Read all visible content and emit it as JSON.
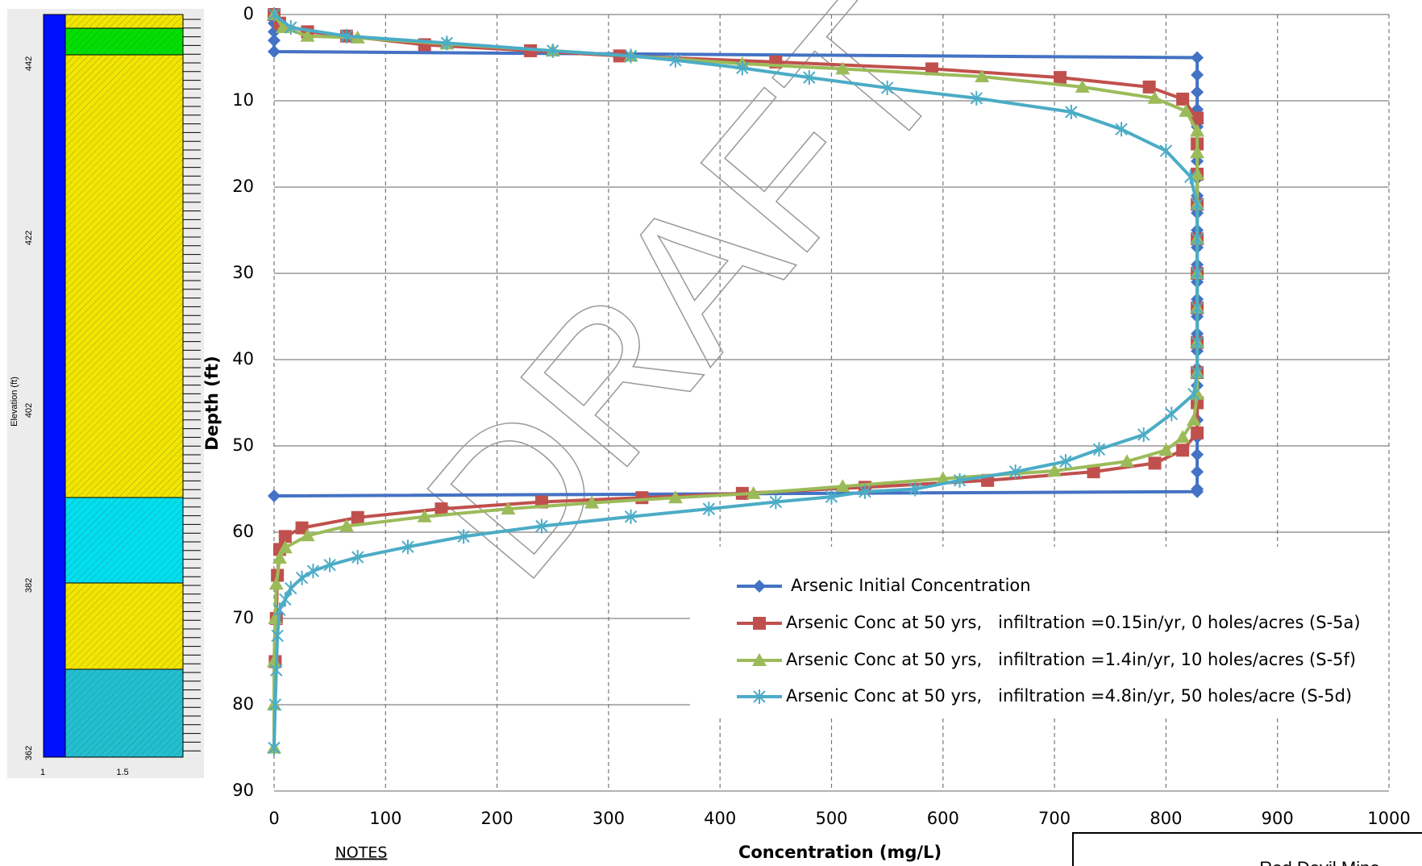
{
  "column": {
    "y_axis_label": "Elevation (ft)",
    "yticks": [
      442,
      422,
      402,
      382,
      362
    ],
    "xticks": [
      1,
      1.5
    ]
  },
  "chart_data": {
    "type": "scatter",
    "xlabel": "Concentration (mg/L)",
    "ylabel": "Depth (ft)",
    "xlim": [
      0,
      1000
    ],
    "ylim": [
      0,
      90
    ],
    "y_inverted": true,
    "grid": true,
    "xticks": [
      0,
      100,
      200,
      300,
      400,
      500,
      600,
      700,
      800,
      900,
      1000
    ],
    "yticks": [
      0,
      10,
      20,
      30,
      40,
      50,
      60,
      70,
      80,
      90
    ],
    "watermark": "DRAFT",
    "series": [
      {
        "name": "Arsenic Initial Concentration",
        "color": "#4472c4",
        "marker": "diamond",
        "x": [
          0,
          0,
          0,
          0,
          0,
          828,
          828,
          828,
          828,
          828,
          828,
          828,
          828,
          828,
          828,
          828,
          828,
          828,
          828,
          828,
          828,
          828,
          828,
          828,
          828,
          828,
          828,
          828,
          828,
          828,
          828,
          828,
          0
        ],
        "y": [
          0,
          1,
          2,
          3,
          4.3,
          5,
          7,
          9,
          11,
          13,
          15,
          17,
          19,
          21,
          23,
          25,
          27,
          29,
          31,
          33,
          35,
          37,
          39,
          41,
          43,
          45,
          47,
          49,
          51,
          53,
          55,
          55.3,
          55.8
        ]
      },
      {
        "name": "Arsenic Conc at 50 yrs,   infiltration =0.15in/yr, 0 holes/acres (S-5a)",
        "color": "#c0504d",
        "marker": "square",
        "x": [
          0,
          5,
          30,
          65,
          135,
          230,
          310,
          450,
          590,
          705,
          785,
          815,
          828,
          828,
          828,
          828,
          828,
          828,
          828,
          828,
          828,
          828,
          828,
          815,
          790,
          735,
          640,
          530,
          420,
          330,
          240,
          150,
          75,
          25,
          10,
          5,
          3,
          2,
          1
        ],
        "y": [
          0,
          1,
          2,
          2.5,
          3.5,
          4.2,
          4.8,
          5.5,
          6.3,
          7.3,
          8.4,
          9.8,
          12,
          15,
          18.5,
          22,
          26,
          30,
          34,
          38,
          41.5,
          45,
          48.5,
          50.5,
          52,
          53,
          54,
          54.8,
          55.5,
          56,
          56.5,
          57.3,
          58.3,
          59.5,
          60.5,
          62,
          65,
          70,
          75
        ]
      },
      {
        "name": "Arsenic Conc at 50 yrs,   infiltration =1.4in/yr, 10 holes/acres (S-5f)",
        "color": "#9bbb59",
        "marker": "triangle",
        "x": [
          0,
          8,
          30,
          75,
          155,
          250,
          320,
          420,
          510,
          635,
          725,
          790,
          818,
          828,
          828,
          828,
          828,
          828,
          828,
          828,
          828,
          828,
          828,
          825,
          815,
          800,
          765,
          700,
          600,
          510,
          430,
          360,
          285,
          210,
          135,
          65,
          30,
          10,
          5,
          2,
          1,
          0,
          0,
          0
        ],
        "y": [
          0,
          1.5,
          2.5,
          2.7,
          3.4,
          4.2,
          4.8,
          5.7,
          6.3,
          7.2,
          8.4,
          9.7,
          11.2,
          13.5,
          16,
          18.5,
          22,
          26,
          30,
          34,
          38,
          41.5,
          44,
          47,
          49,
          50.5,
          51.8,
          52.9,
          53.8,
          54.7,
          55.5,
          56,
          56.6,
          57.3,
          58.2,
          59.3,
          60.4,
          61.8,
          63,
          66,
          70,
          75,
          80,
          85
        ]
      },
      {
        "name": "Arsenic Conc at 50 yrs,   infiltration =4.8in/yr, 50 holes/acre (S-5d)",
        "color": "#4bacc6",
        "marker": "asterisk",
        "x": [
          0,
          15,
          65,
          155,
          250,
          320,
          360,
          420,
          480,
          550,
          630,
          715,
          760,
          800,
          822,
          828,
          828,
          828,
          828,
          828,
          828,
          825,
          805,
          780,
          740,
          710,
          665,
          615,
          575,
          530,
          500,
          450,
          390,
          320,
          240,
          170,
          120,
          75,
          50,
          35,
          25,
          15,
          10,
          5,
          3,
          2,
          1,
          0
        ],
        "y": [
          0,
          1.5,
          2.5,
          3.3,
          4.2,
          4.8,
          5.3,
          6.2,
          7.3,
          8.5,
          9.7,
          11.3,
          13.3,
          15.8,
          18.8,
          22,
          26,
          30,
          34,
          38,
          41.5,
          44,
          46.3,
          48.7,
          50.4,
          51.8,
          53,
          54,
          55,
          55.3,
          55.9,
          56.5,
          57.3,
          58.2,
          59.3,
          60.5,
          61.7,
          62.9,
          63.8,
          64.5,
          65.3,
          66.5,
          67.8,
          69,
          72,
          76,
          80,
          85
        ]
      }
    ]
  },
  "notes_label": "NOTES",
  "title_block": "Red Devil Mine"
}
